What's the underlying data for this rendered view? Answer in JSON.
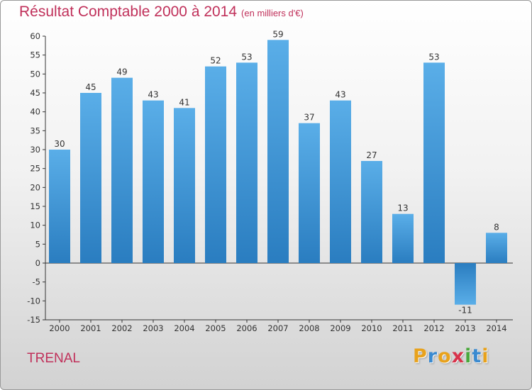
{
  "colors": {
    "title": "#c0305a",
    "bar_light": "#5aaee8",
    "bar_dark": "#2a7dc0"
  },
  "chart_data": {
    "type": "bar",
    "title": "Résultat Comptable 2000 à 2014",
    "subtitle": "(en milliers d'€)",
    "categories": [
      "2000",
      "2001",
      "2002",
      "2003",
      "2004",
      "2005",
      "2006",
      "2007",
      "2008",
      "2009",
      "2010",
      "2011",
      "2012",
      "2013",
      "2014"
    ],
    "values": [
      30,
      45,
      49,
      43,
      41,
      52,
      53,
      59,
      37,
      43,
      27,
      13,
      53,
      -11,
      8
    ],
    "ylim": [
      -15,
      60
    ],
    "yticks": [
      60,
      55,
      50,
      45,
      40,
      35,
      30,
      25,
      20,
      15,
      10,
      5,
      0,
      -5,
      -10,
      -15
    ],
    "xlabel": "",
    "ylabel": "",
    "grid": false
  },
  "commune": "TRENAL",
  "brand": {
    "letters": [
      "P",
      "r",
      "o",
      "x",
      "i",
      "t",
      "i"
    ],
    "colors": [
      "#e8a21c",
      "#3a8ad0",
      "#e8a21c",
      "#d8324a",
      "#4aa83c",
      "#3a8ad0",
      "#e8a21c"
    ]
  }
}
